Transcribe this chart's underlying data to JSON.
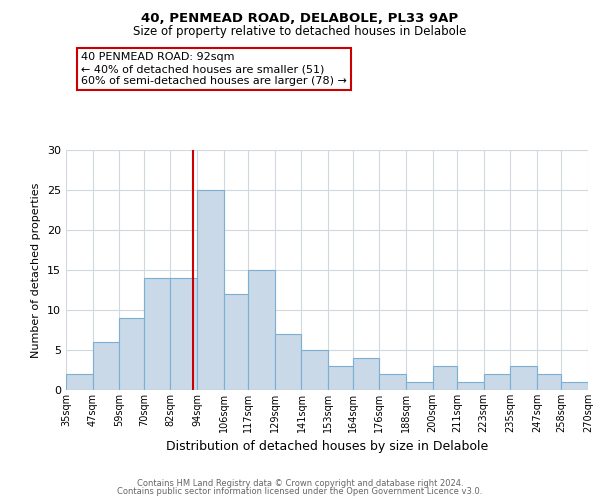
{
  "title1": "40, PENMEAD ROAD, DELABOLE, PL33 9AP",
  "title2": "Size of property relative to detached houses in Delabole",
  "xlabel": "Distribution of detached houses by size in Delabole",
  "ylabel": "Number of detached properties",
  "footnote1": "Contains HM Land Registry data © Crown copyright and database right 2024.",
  "footnote2": "Contains public sector information licensed under the Open Government Licence v3.0.",
  "annotation_title": "40 PENMEAD ROAD: 92sqm",
  "annotation_line1": "← 40% of detached houses are smaller (51)",
  "annotation_line2": "60% of semi-detached houses are larger (78) →",
  "bar_edges": [
    35,
    47,
    59,
    70,
    82,
    94,
    106,
    117,
    129,
    141,
    153,
    164,
    176,
    188,
    200,
    211,
    223,
    235,
    247,
    258,
    270
  ],
  "bar_heights": [
    2,
    6,
    9,
    14,
    14,
    25,
    12,
    15,
    7,
    5,
    3,
    4,
    2,
    1,
    3,
    1,
    2,
    3,
    2,
    1
  ],
  "bar_color": "#c9d9e8",
  "bar_edge_color": "#7bafd4",
  "reference_line_x": 92,
  "reference_line_color": "#cc0000",
  "tick_labels": [
    "35sqm",
    "47sqm",
    "59sqm",
    "70sqm",
    "82sqm",
    "94sqm",
    "106sqm",
    "117sqm",
    "129sqm",
    "141sqm",
    "153sqm",
    "164sqm",
    "176sqm",
    "188sqm",
    "200sqm",
    "211sqm",
    "223sqm",
    "235sqm",
    "247sqm",
    "258sqm",
    "270sqm"
  ],
  "ylim": [
    0,
    30
  ],
  "yticks": [
    0,
    5,
    10,
    15,
    20,
    25,
    30
  ],
  "bg_color": "#ffffff",
  "grid_color": "#d0d8e0",
  "annotation_box_color": "#ffffff",
  "annotation_box_edge_color": "#cc0000"
}
